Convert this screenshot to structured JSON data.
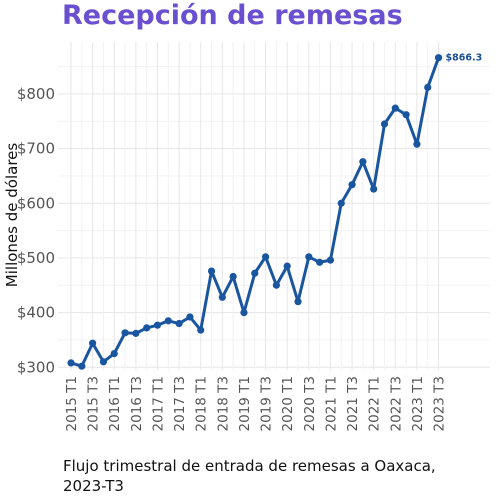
{
  "chart_data": {
    "type": "line",
    "title": "Recepción de remesas",
    "caption": "Flujo trimestral de entrada de remesas a Oaxaca, 2023-T3",
    "ylabel": "Millones de dólares",
    "xlabel": "",
    "ylim": [
      295,
      895
    ],
    "yticks": [
      300,
      400,
      500,
      600,
      700,
      800
    ],
    "ytick_labels": [
      "$300",
      "$400",
      "$500",
      "$600",
      "$700",
      "$800"
    ],
    "xtick_labels": [
      "2015 T1",
      "2015 T3",
      "2016 T1",
      "2016 T3",
      "2017 T1",
      "2017 T3",
      "2018 T1",
      "2018 T3",
      "2019 T1",
      "2019 T3",
      "2020 T1",
      "2020 T3",
      "2021 T1",
      "2021 T3",
      "2022 T1",
      "2022 T3",
      "2023 T1",
      "2023 T3"
    ],
    "x": [
      "2015 T1",
      "2015 T2",
      "2015 T3",
      "2015 T4",
      "2016 T1",
      "2016 T2",
      "2016 T3",
      "2016 T4",
      "2017 T1",
      "2017 T2",
      "2017 T3",
      "2017 T4",
      "2018 T1",
      "2018 T2",
      "2018 T3",
      "2018 T4",
      "2019 T1",
      "2019 T2",
      "2019 T3",
      "2019 T4",
      "2020 T1",
      "2020 T2",
      "2020 T3",
      "2020 T4",
      "2021 T1",
      "2021 T2",
      "2021 T3",
      "2021 T4",
      "2022 T1",
      "2022 T2",
      "2022 T3",
      "2022 T4",
      "2023 T1",
      "2023 T2",
      "2023 T3"
    ],
    "values": [
      308,
      302,
      344,
      310,
      325,
      363,
      362,
      372,
      377,
      385,
      380,
      392,
      368,
      476,
      428,
      466,
      400,
      472,
      502,
      450,
      485,
      420,
      502,
      492,
      496,
      600,
      634,
      676,
      626,
      745,
      774,
      762,
      708,
      812,
      866.3
    ],
    "last_label": "$866.3",
    "grid": true,
    "line_color": "#1a56a0",
    "title_color": "#6a4fd0"
  }
}
